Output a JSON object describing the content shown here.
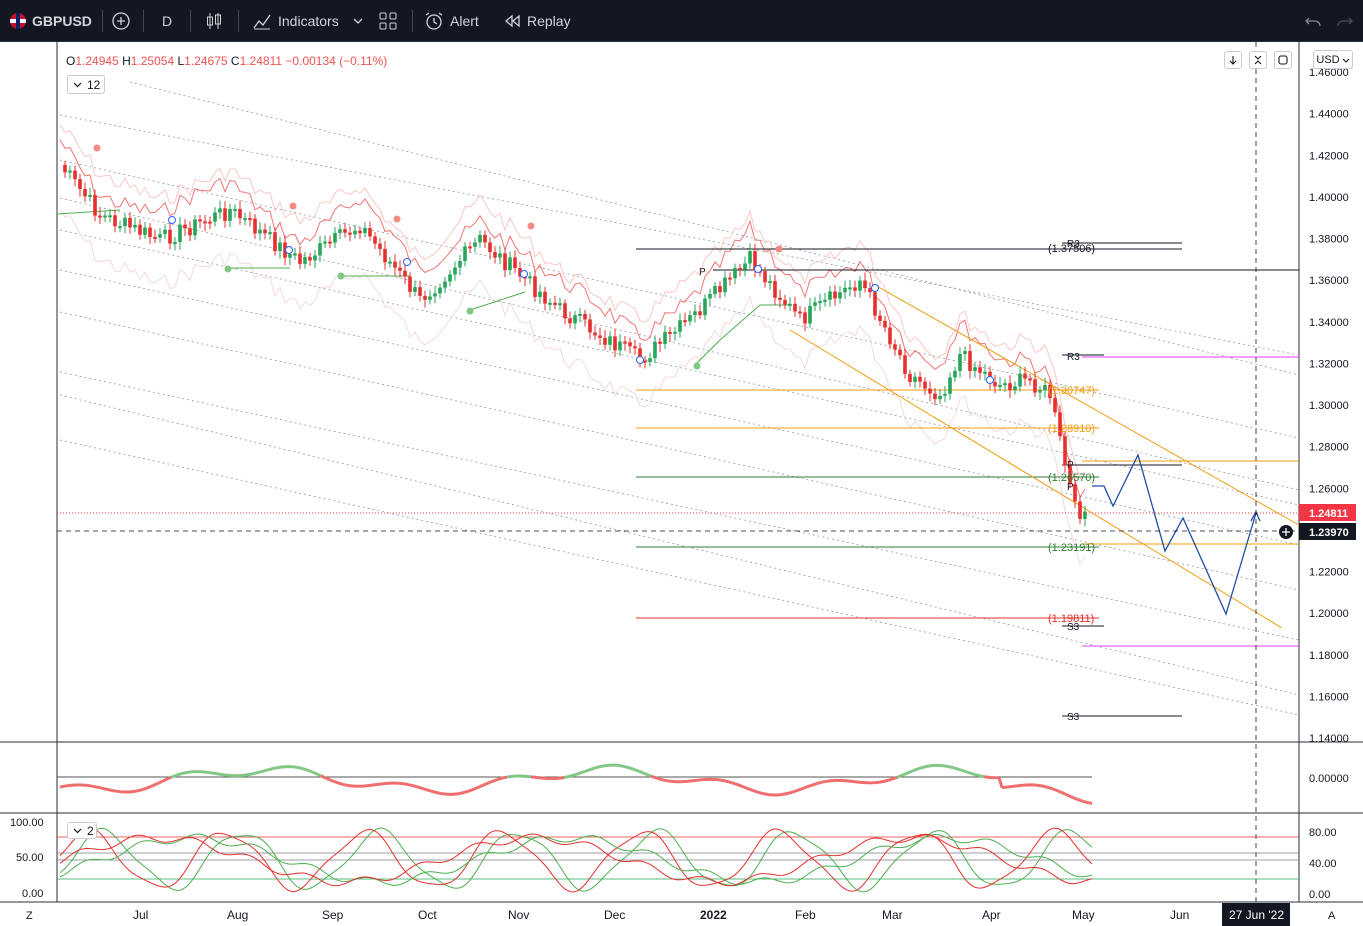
{
  "toolbar": {
    "symbol": "GBPUSD",
    "interval": "D",
    "indicators_label": "Indicators",
    "alert_label": "Alert",
    "replay_label": "Replay"
  },
  "legend": {
    "o_key": "O",
    "o_val": "1.24945",
    "h_key": "H",
    "h_val": "1.25054",
    "l_key": "L",
    "l_val": "1.24675",
    "c_key": "C",
    "c_val": "1.24811",
    "change": "−0.00134 (−0.11%)",
    "study_count": "12",
    "pane3_count": "2"
  },
  "currency_button": "USD",
  "price_axis": {
    "ticks": [
      "1.46000",
      "1.44000",
      "1.42000",
      "1.40000",
      "1.38000",
      "1.36000",
      "1.34000",
      "1.32000",
      "1.30000",
      "1.28000",
      "1.26000",
      "1.24000",
      "1.22000",
      "1.20000",
      "1.18000",
      "1.16000",
      "1.14000"
    ],
    "last_price": "1.24811",
    "crosshair_price": "1.23970"
  },
  "osc_axis": {
    "ticks": [
      "0.00000"
    ]
  },
  "stoch_axis": {
    "left_ticks": [
      "100.00",
      "50.00",
      "0.00"
    ],
    "right_ticks": [
      "80.00",
      "40.00",
      "0.00"
    ]
  },
  "time_axis": {
    "labels": [
      "Jul",
      "Aug",
      "Sep",
      "Oct",
      "Nov",
      "Dec",
      "2022",
      "Feb",
      "Mar",
      "Apr",
      "May",
      "Jun"
    ],
    "crosshair_date": "27 Jun '22",
    "left_btn": "Z",
    "right_btn": "A"
  },
  "level_labels": {
    "fib_1": "(1.37506)",
    "fib_2": "(1.30747)",
    "fib_3": "(1.28910)",
    "fib_4": "(1.26570)",
    "fib_5": "(1.23191)",
    "fib_6": "(1.19811)",
    "p_1": "P",
    "p_2": "P",
    "p_3": "P",
    "r3_a": "R3",
    "r3_b": "R3",
    "s3_a": "S3",
    "s3_b": "S3"
  },
  "colors": {
    "up": "#26a65b",
    "down": "#e5302e",
    "fib_orange": "#f39c12",
    "pivot_magenta": "#e040fb",
    "price_red": "#f23645",
    "crosshair": "#131722"
  }
}
